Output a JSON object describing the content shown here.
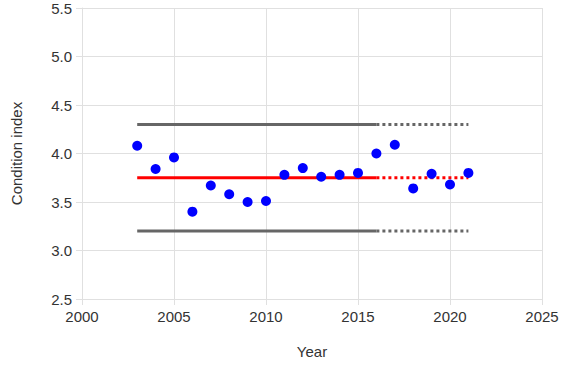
{
  "chart_data": {
    "type": "scatter",
    "x_label": "Year",
    "y_label": "Condition index",
    "xlim": [
      2000,
      2025
    ],
    "xticks": [
      2000,
      2005,
      2010,
      2015,
      2020,
      2025
    ],
    "ylim": [
      2.5,
      5.5
    ],
    "yticks": [
      2.5,
      {
        "value": 3,
        "label": "3.0"
      },
      3.5,
      {
        "value": 4,
        "label": "4.0"
      },
      4.5,
      {
        "value": 5,
        "label": "5.0"
      },
      5.5
    ],
    "grid": true,
    "series": [
      {
        "type": "line",
        "color": "#666666",
        "line_style": "solid",
        "x": [
          2003,
          2016
        ],
        "values": [
          4.3,
          4.3
        ]
      },
      {
        "type": "line",
        "color": "#666666",
        "line_style": "dotted",
        "x": [
          2016,
          2021
        ],
        "values": [
          4.3,
          4.3
        ]
      },
      {
        "type": "line",
        "color": "#666666",
        "line_style": "solid",
        "x": [
          2003,
          2016
        ],
        "values": [
          3.2,
          3.2
        ]
      },
      {
        "type": "line",
        "color": "#666666",
        "line_style": "dotted",
        "x": [
          2016,
          2021
        ],
        "values": [
          3.2,
          3.2
        ]
      },
      {
        "type": "line",
        "color": "#ff0000",
        "line_style": "solid",
        "x": [
          2003,
          2016
        ],
        "values": [
          3.75,
          3.75
        ]
      },
      {
        "type": "line",
        "color": "#ff0000",
        "line_style": "dotted",
        "x": [
          2016,
          2021
        ],
        "values": [
          3.75,
          3.75
        ]
      },
      {
        "type": "scatter",
        "marker": "circle",
        "color": "#0000ff",
        "x": [
          2003,
          2004,
          2005,
          2006,
          2007,
          2008,
          2009,
          2010,
          2011,
          2012,
          2013,
          2014,
          2015,
          2016,
          2017,
          2018,
          2019,
          2020,
          2021
        ],
        "values": [
          4.08,
          3.84,
          3.96,
          3.4,
          3.67,
          3.58,
          3.5,
          3.51,
          3.78,
          3.85,
          3.76,
          3.78,
          3.8,
          4.0,
          4.09,
          3.64,
          3.79,
          3.68,
          3.8
        ]
      }
    ]
  }
}
